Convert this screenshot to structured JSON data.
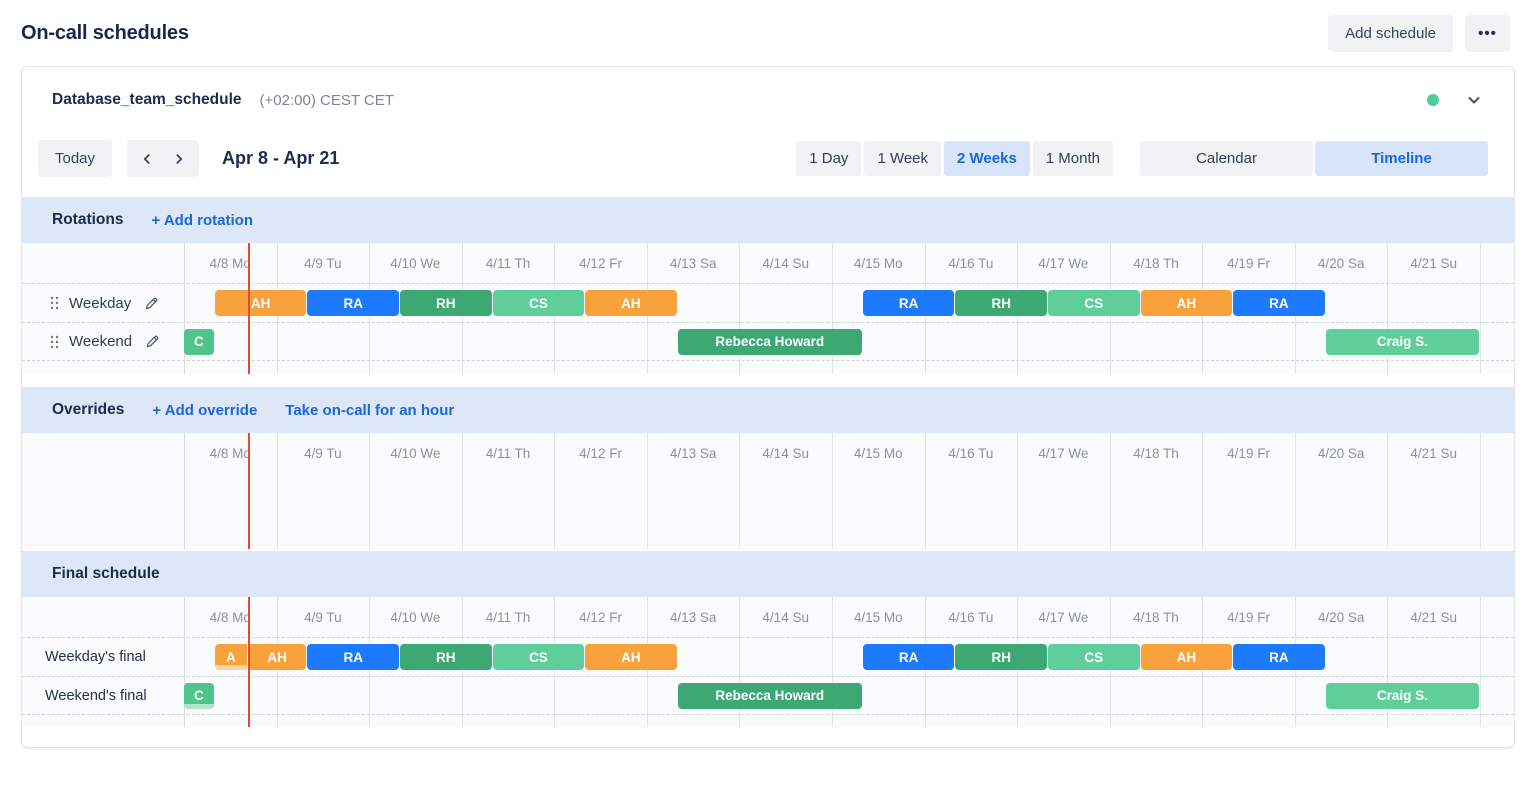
{
  "page": {
    "title": "On-call schedules",
    "add_schedule_label": "Add schedule",
    "more_label": "•••"
  },
  "schedule_card": {
    "name": "Database_team_schedule",
    "timezone": "(+02:00) CEST CET"
  },
  "toolbar": {
    "today_label": "Today",
    "date_range": "Apr 8 - Apr 21",
    "zoom_options": [
      {
        "label": "1 Day",
        "selected": false
      },
      {
        "label": "1 Week",
        "selected": false
      },
      {
        "label": "2 Weeks",
        "selected": true
      },
      {
        "label": "1 Month",
        "selected": false
      }
    ],
    "view_options": [
      {
        "label": "Calendar",
        "selected": false
      },
      {
        "label": "Timeline",
        "selected": true
      }
    ]
  },
  "sections": {
    "rotations": {
      "title": "Rotations",
      "add_label": "+ Add rotation"
    },
    "overrides": {
      "title": "Overrides",
      "add_label": "+ Add override",
      "take_label": "Take on-call for an hour"
    },
    "final": {
      "title": "Final schedule"
    }
  },
  "timeline": {
    "days": [
      "4/8 Mo",
      "4/9 Tu",
      "4/10 We",
      "4/11 Th",
      "4/12 Fr",
      "4/13 Sa",
      "4/14 Su",
      "4/15 Mo",
      "4/16 Tu",
      "4/17 We",
      "4/18 Th",
      "4/19 Fr",
      "4/20 Sa",
      "4/21 Su"
    ],
    "day_count": 14,
    "now_position_days": 0.69,
    "rotation_rows": [
      {
        "id": "weekday",
        "label": "Weekday",
        "editable": true,
        "bars": [
          {
            "label": "AH",
            "color": "orange",
            "start": 0.3333,
            "end": 1.3333
          },
          {
            "label": "RA",
            "color": "blue",
            "start": 1.3333,
            "end": 2.3333
          },
          {
            "label": "RH",
            "color": "green",
            "start": 2.3333,
            "end": 3.3333
          },
          {
            "label": "CS",
            "color": "mint",
            "start": 3.3333,
            "end": 4.3333
          },
          {
            "label": "AH",
            "color": "orange",
            "start": 4.3333,
            "end": 5.3333
          },
          {
            "label": "RA",
            "color": "blue",
            "start": 7.3333,
            "end": 8.3333
          },
          {
            "label": "RH",
            "color": "green",
            "start": 8.3333,
            "end": 9.3333
          },
          {
            "label": "CS",
            "color": "mint",
            "start": 9.3333,
            "end": 10.3333
          },
          {
            "label": "AH",
            "color": "orange",
            "start": 10.3333,
            "end": 11.3333
          },
          {
            "label": "RA",
            "color": "blue",
            "start": 11.3333,
            "end": 12.3333
          }
        ]
      },
      {
        "id": "weekend",
        "label": "Weekend",
        "editable": true,
        "bars": [
          {
            "label": "C",
            "color": "teal",
            "start": 0,
            "end": 0.3333
          },
          {
            "label": "Rebecca Howard",
            "color": "green",
            "start": 5.3333,
            "end": 7.3333
          },
          {
            "label": "Craig S.",
            "color": "mint",
            "start": 12.3333,
            "end": 14
          }
        ]
      }
    ],
    "override_rows": [],
    "final_rows": [
      {
        "id": "weekday-final",
        "label": "Weekday's final",
        "bars": [
          {
            "label": "A",
            "color": "orange",
            "start": 0.3333,
            "end": 0.69,
            "past": true,
            "flat_right": true
          },
          {
            "label": "AH",
            "color": "orange",
            "start": 0.69,
            "end": 1.3333,
            "flat_left": true
          },
          {
            "label": "RA",
            "color": "blue",
            "start": 1.3333,
            "end": 2.3333
          },
          {
            "label": "RH",
            "color": "green",
            "start": 2.3333,
            "end": 3.3333
          },
          {
            "label": "CS",
            "color": "mint",
            "start": 3.3333,
            "end": 4.3333
          },
          {
            "label": "AH",
            "color": "orange",
            "start": 4.3333,
            "end": 5.3333
          },
          {
            "label": "RA",
            "color": "blue",
            "start": 7.3333,
            "end": 8.3333
          },
          {
            "label": "RH",
            "color": "green",
            "start": 8.3333,
            "end": 9.3333
          },
          {
            "label": "CS",
            "color": "mint",
            "start": 9.3333,
            "end": 10.3333
          },
          {
            "label": "AH",
            "color": "orange",
            "start": 10.3333,
            "end": 11.3333
          },
          {
            "label": "RA",
            "color": "blue",
            "start": 11.3333,
            "end": 12.3333
          }
        ]
      },
      {
        "id": "weekend-final",
        "label": "Weekend's final",
        "bars": [
          {
            "label": "C",
            "color": "teal",
            "start": 0,
            "end": 0.3333,
            "past": true
          },
          {
            "label": "Rebecca Howard",
            "color": "green",
            "start": 5.3333,
            "end": 7.3333
          },
          {
            "label": "Craig S.",
            "color": "mint",
            "start": 12.3333,
            "end": 14
          }
        ]
      }
    ]
  },
  "colors": {
    "orange": "#F9A23C",
    "blue": "#1D7AFC",
    "green": "#3DA874",
    "mint": "#5FCE9B",
    "teal": "#50C48D",
    "now_line": "#E34935",
    "accent_blue": "#1868DB",
    "band_bg": "#DDE7F8",
    "selected_bg": "#D7E4FA",
    "status_dot": "#4BCE97"
  }
}
